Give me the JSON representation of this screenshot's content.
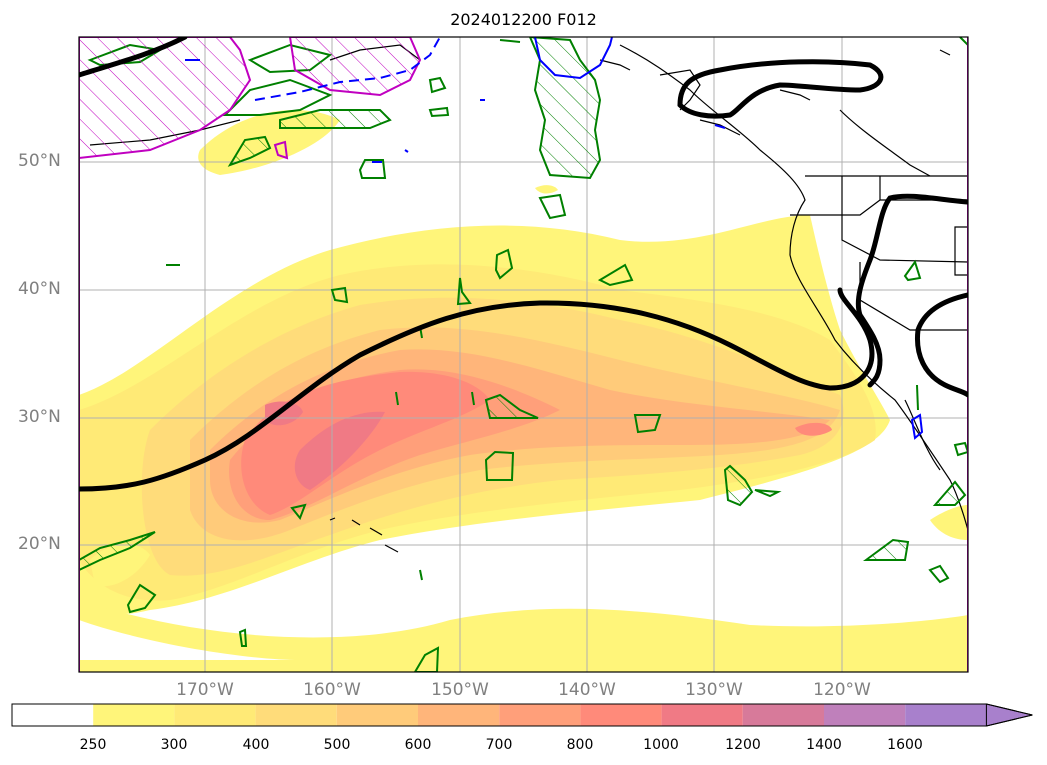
{
  "title": "2024012200 F012",
  "lat_labels": [
    "50°N",
    "40°N",
    "30°N",
    "20°N"
  ],
  "lon_labels": [
    "170°W",
    "160°W",
    "150°W",
    "140°W",
    "130°W",
    "120°W"
  ],
  "colorbar": {
    "levels": [
      "250",
      "300",
      "400",
      "500",
      "600",
      "700",
      "800",
      "1000",
      "1200",
      "1400",
      "1600"
    ],
    "colors": [
      "#ffffff",
      "#fff57a",
      "#ffea76",
      "#ffdc7a",
      "#ffcb7a",
      "#ffb57a",
      "#ff9f7a",
      "#ff8a7a",
      "#f07a85",
      "#d77a9a",
      "#bf80bb",
      "#a880cc"
    ]
  },
  "map_colors": {
    "jet_contour": "#000000",
    "green_contour": "#008000",
    "blue_contour": "#0000ff",
    "magenta_contour": "#c000c0"
  }
}
